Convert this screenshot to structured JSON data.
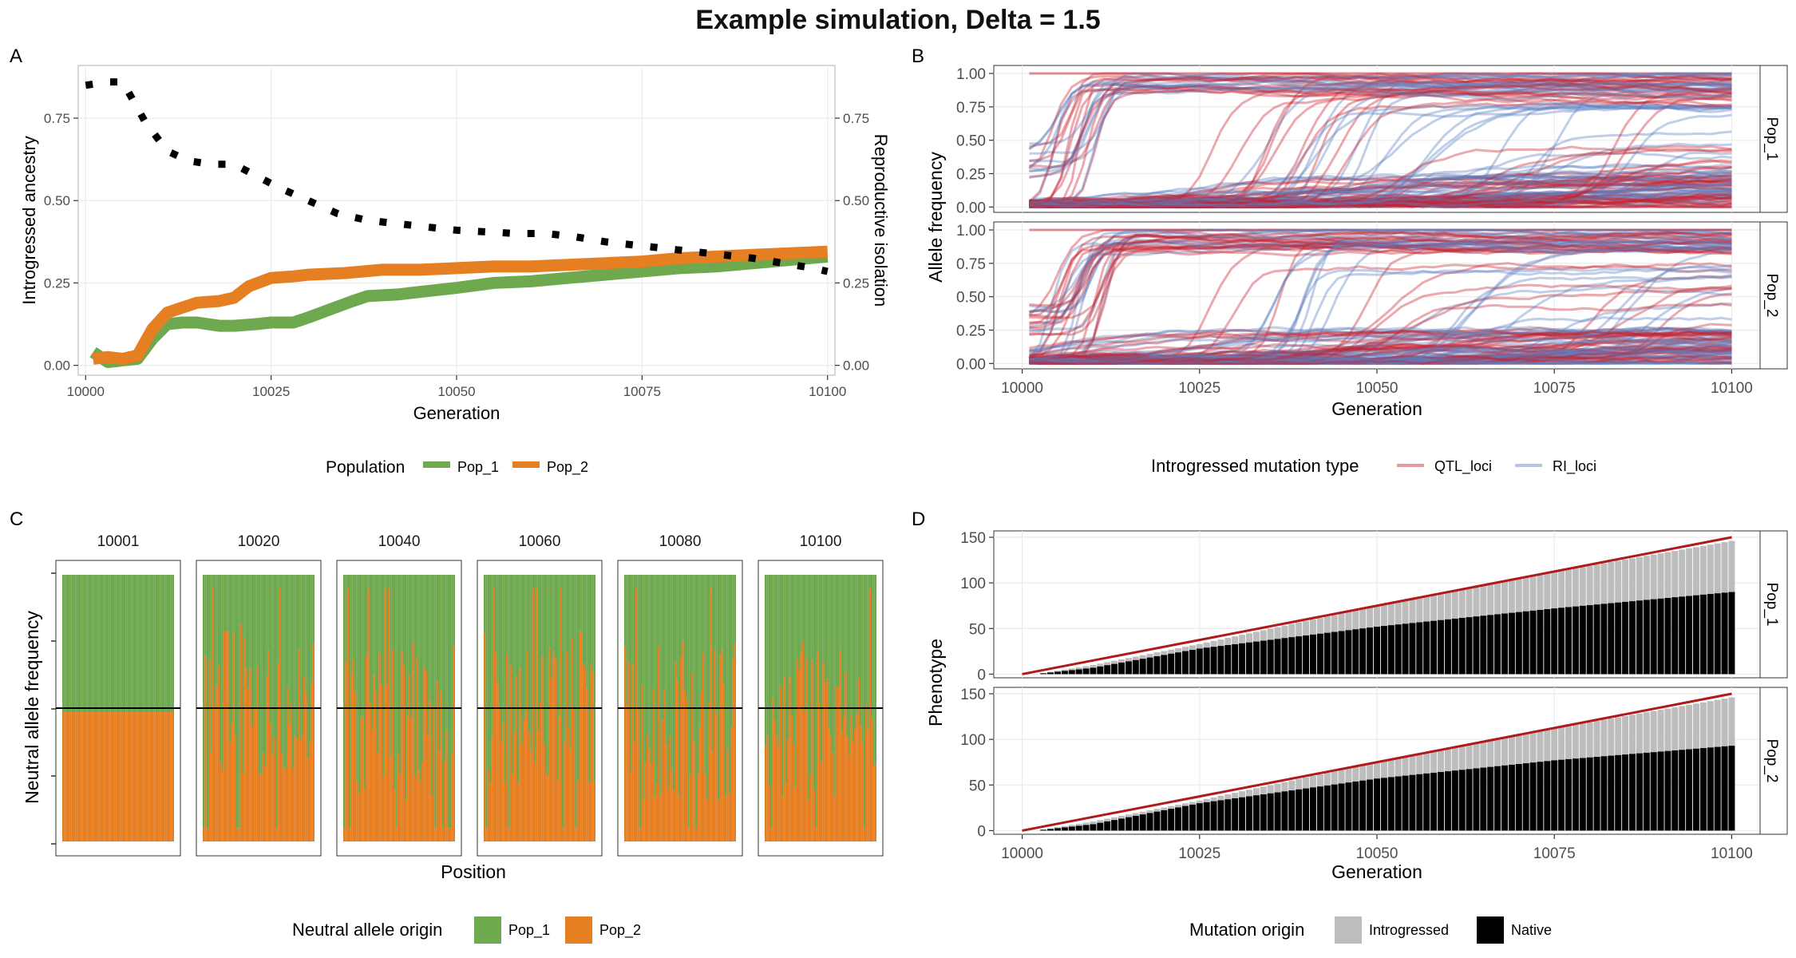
{
  "title": "Example simulation, Delta = 1.5",
  "colors": {
    "pop1": "#6ea84f",
    "pop2": "#e67e22",
    "qtl": "#c8202d",
    "ri": "#5b7fbf",
    "introgressed": "#bdbdbd",
    "native": "#000000",
    "target": "#b01a1a",
    "grid": "#ebebeb",
    "strip_border": "#7f7f7f"
  },
  "chart_data": [
    {
      "panel": "A",
      "type": "line",
      "xlabel": "Generation",
      "ylabel": "Introgressed ancestry",
      "ylabel_right": "Reproductive isolation",
      "xlim": [
        9999,
        10101
      ],
      "ylim": [
        -0.03,
        0.91
      ],
      "xticks": [
        10000,
        10025,
        10050,
        10075,
        10100
      ],
      "yticks": [
        0.0,
        0.25,
        0.5,
        0.75
      ],
      "ytick_labels": [
        "0.00",
        "0.25",
        "0.50",
        "0.75"
      ],
      "legend_title": "Population",
      "series": [
        {
          "name": "Pop_1",
          "x": [
            10001,
            10003,
            10005,
            10007,
            10009,
            10011,
            10013,
            10015,
            10018,
            10020,
            10023,
            10025,
            10028,
            10030,
            10033,
            10036,
            10038,
            10042,
            10046,
            10050,
            10055,
            10060,
            10065,
            10070,
            10075,
            10080,
            10085,
            10090,
            10095,
            10100
          ],
          "y": [
            0.04,
            0.01,
            0.015,
            0.02,
            0.08,
            0.125,
            0.13,
            0.13,
            0.12,
            0.12,
            0.125,
            0.13,
            0.13,
            0.145,
            0.17,
            0.195,
            0.21,
            0.215,
            0.225,
            0.235,
            0.25,
            0.255,
            0.265,
            0.275,
            0.285,
            0.295,
            0.3,
            0.31,
            0.32,
            0.33
          ]
        },
        {
          "name": "Pop_2",
          "x": [
            10001,
            10003,
            10005,
            10007,
            10009,
            10011,
            10013,
            10015,
            10018,
            10020,
            10022,
            10025,
            10028,
            10030,
            10035,
            10040,
            10045,
            10050,
            10055,
            10060,
            10065,
            10070,
            10075,
            10080,
            10085,
            10090,
            10095,
            10100
          ],
          "y": [
            0.02,
            0.025,
            0.02,
            0.03,
            0.11,
            0.16,
            0.175,
            0.19,
            0.195,
            0.205,
            0.24,
            0.265,
            0.27,
            0.275,
            0.28,
            0.29,
            0.29,
            0.295,
            0.3,
            0.3,
            0.305,
            0.31,
            0.315,
            0.325,
            0.33,
            0.335,
            0.34,
            0.345
          ]
        },
        {
          "name": "Reproductive isolation",
          "style": "dotted",
          "x": [
            10000,
            10003,
            10005,
            10008,
            10011,
            10014,
            10017,
            10020,
            10023,
            10026,
            10030,
            10034,
            10038,
            10042,
            10046,
            10050,
            10054,
            10058,
            10062,
            10066,
            10070,
            10074,
            10078,
            10082,
            10086,
            10090,
            10094,
            10098,
            10100
          ],
          "y": [
            0.85,
            0.86,
            0.86,
            0.74,
            0.65,
            0.62,
            0.61,
            0.61,
            0.575,
            0.54,
            0.5,
            0.46,
            0.44,
            0.43,
            0.42,
            0.41,
            0.405,
            0.4,
            0.4,
            0.39,
            0.375,
            0.365,
            0.355,
            0.345,
            0.335,
            0.325,
            0.31,
            0.295,
            0.285
          ]
        }
      ]
    },
    {
      "panel": "B",
      "type": "line",
      "xlabel": "Generation",
      "ylabel": "Allele frequency",
      "xlim": [
        9996,
        10104
      ],
      "ylim": [
        -0.04,
        1.06
      ],
      "xticks": [
        10000,
        10025,
        10050,
        10075,
        10100
      ],
      "yticks": [
        0.0,
        0.25,
        0.5,
        0.75,
        1.0
      ],
      "ytick_labels": [
        "0.00",
        "0.25",
        "0.50",
        "0.75",
        "1.00"
      ],
      "facets": [
        "Pop_1",
        "Pop_2"
      ],
      "legend_title": "Introgressed mutation type",
      "legend": [
        "QTL_loci",
        "RI_loci"
      ]
    },
    {
      "panel": "C",
      "type": "bar",
      "xlabel": "Position",
      "ylabel": "Neutral allele frequency",
      "facets": [
        "10001",
        "10020",
        "10040",
        "10060",
        "10080",
        "10100"
      ],
      "legend_title": "Neutral allele origin",
      "legend": [
        "Pop_1",
        "Pop_2"
      ],
      "midline": 0.5
    },
    {
      "panel": "D",
      "type": "bar",
      "xlabel": "Generation",
      "ylabel": "Phenotype",
      "xlim": [
        9996,
        10104
      ],
      "ylim": [
        -4,
        157
      ],
      "xticks": [
        10000,
        10025,
        10050,
        10075,
        10100
      ],
      "yticks": [
        0,
        50,
        100,
        150
      ],
      "facets": [
        "Pop_1",
        "Pop_2"
      ],
      "legend_title": "Mutation origin",
      "legend": [
        "Introgressed",
        "Native"
      ],
      "target": {
        "x": [
          10000,
          10100
        ],
        "y": [
          0,
          150
        ]
      },
      "series": [
        {
          "name": "Pop_1",
          "total": {
            "x": [
              10002,
              10010,
              10025,
              10050,
              10075,
              10100
            ],
            "y": [
              0,
              10,
              33,
              75,
              112,
              146
            ]
          },
          "native": {
            "x": [
              10002,
              10010,
              10025,
              10050,
              10075,
              10100
            ],
            "y": [
              0,
              7,
              28,
              52,
              72,
              90
            ]
          }
        },
        {
          "name": "Pop_2",
          "total": {
            "x": [
              10002,
              10010,
              10025,
              10050,
              10075,
              10100
            ],
            "y": [
              0,
              10,
              33,
              75,
              112,
              146
            ]
          },
          "native": {
            "x": [
              10002,
              10010,
              10025,
              10050,
              10075,
              10100
            ],
            "y": [
              0,
              7,
              30,
              57,
              77,
              93
            ]
          }
        }
      ]
    }
  ],
  "panel_labels": [
    "A",
    "B",
    "C",
    "D"
  ]
}
